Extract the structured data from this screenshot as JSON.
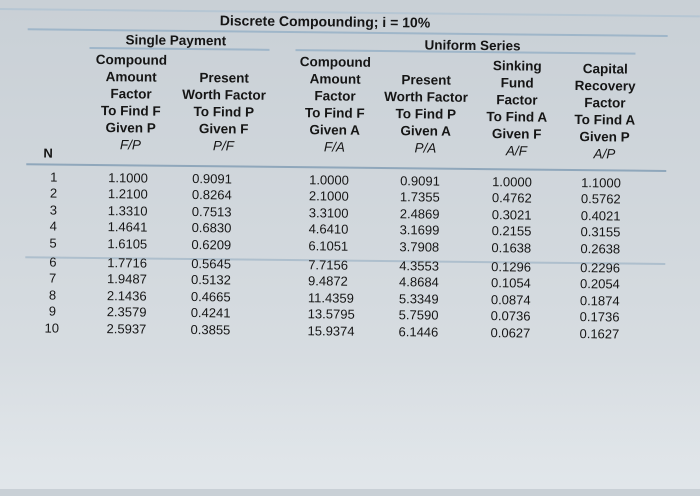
{
  "title": "Discrete Compounding; i = 10%",
  "groups": {
    "single": "Single Payment",
    "uniform": "Uniform Series"
  },
  "headers": {
    "n": "N",
    "fp": [
      "Compound",
      "Amount",
      "Factor",
      "To Find F",
      "Given P",
      "F/P"
    ],
    "pf": [
      "Present",
      "Worth Factor",
      "To Find P",
      "Given F",
      "P/F"
    ],
    "fa": [
      "Compound",
      "Amount",
      "Factor",
      "To Find F",
      "Given A",
      "F/A"
    ],
    "pa": [
      "Present",
      "Worth Factor",
      "To Find P",
      "Given A",
      "P/A"
    ],
    "af": [
      "Sinking",
      "Fund",
      "Factor",
      "To Find A",
      "Given F",
      "A/F"
    ],
    "ap": [
      "Capital",
      "Recovery",
      "Factor",
      "To Find A",
      "Given P",
      "A/P"
    ]
  },
  "table": {
    "n": [
      "1",
      "2",
      "3",
      "4",
      "5",
      "6",
      "7",
      "8",
      "9",
      "10"
    ],
    "fp": [
      "1.1000",
      "1.2100",
      "1.3310",
      "1.4641",
      "1.6105",
      "1.7716",
      "1.9487",
      "2.1436",
      "2.3579",
      "2.5937"
    ],
    "pf": [
      "0.9091",
      "0.8264",
      "0.7513",
      "0.6830",
      "0.6209",
      "0.5645",
      "0.5132",
      "0.4665",
      "0.4241",
      "0.3855"
    ],
    "fa": [
      "1.0000",
      "2.1000",
      "3.3100",
      "4.6410",
      "6.1051",
      "7.7156",
      "9.4872",
      "11.4359",
      "13.5795",
      "15.9374"
    ],
    "pa": [
      "0.9091",
      "1.7355",
      "2.4869",
      "3.1699",
      "3.7908",
      "4.3553",
      "4.8684",
      "5.3349",
      "5.7590",
      "6.1446"
    ],
    "af": [
      "1.0000",
      "0.4762",
      "0.3021",
      "0.2155",
      "0.1638",
      "0.1296",
      "0.1054",
      "0.0874",
      "0.0736",
      "0.0627"
    ],
    "ap": [
      "1.1000",
      "0.5762",
      "0.4021",
      "0.3155",
      "0.2638",
      "0.2296",
      "0.2054",
      "0.1874",
      "0.1736",
      "0.1627"
    ]
  }
}
